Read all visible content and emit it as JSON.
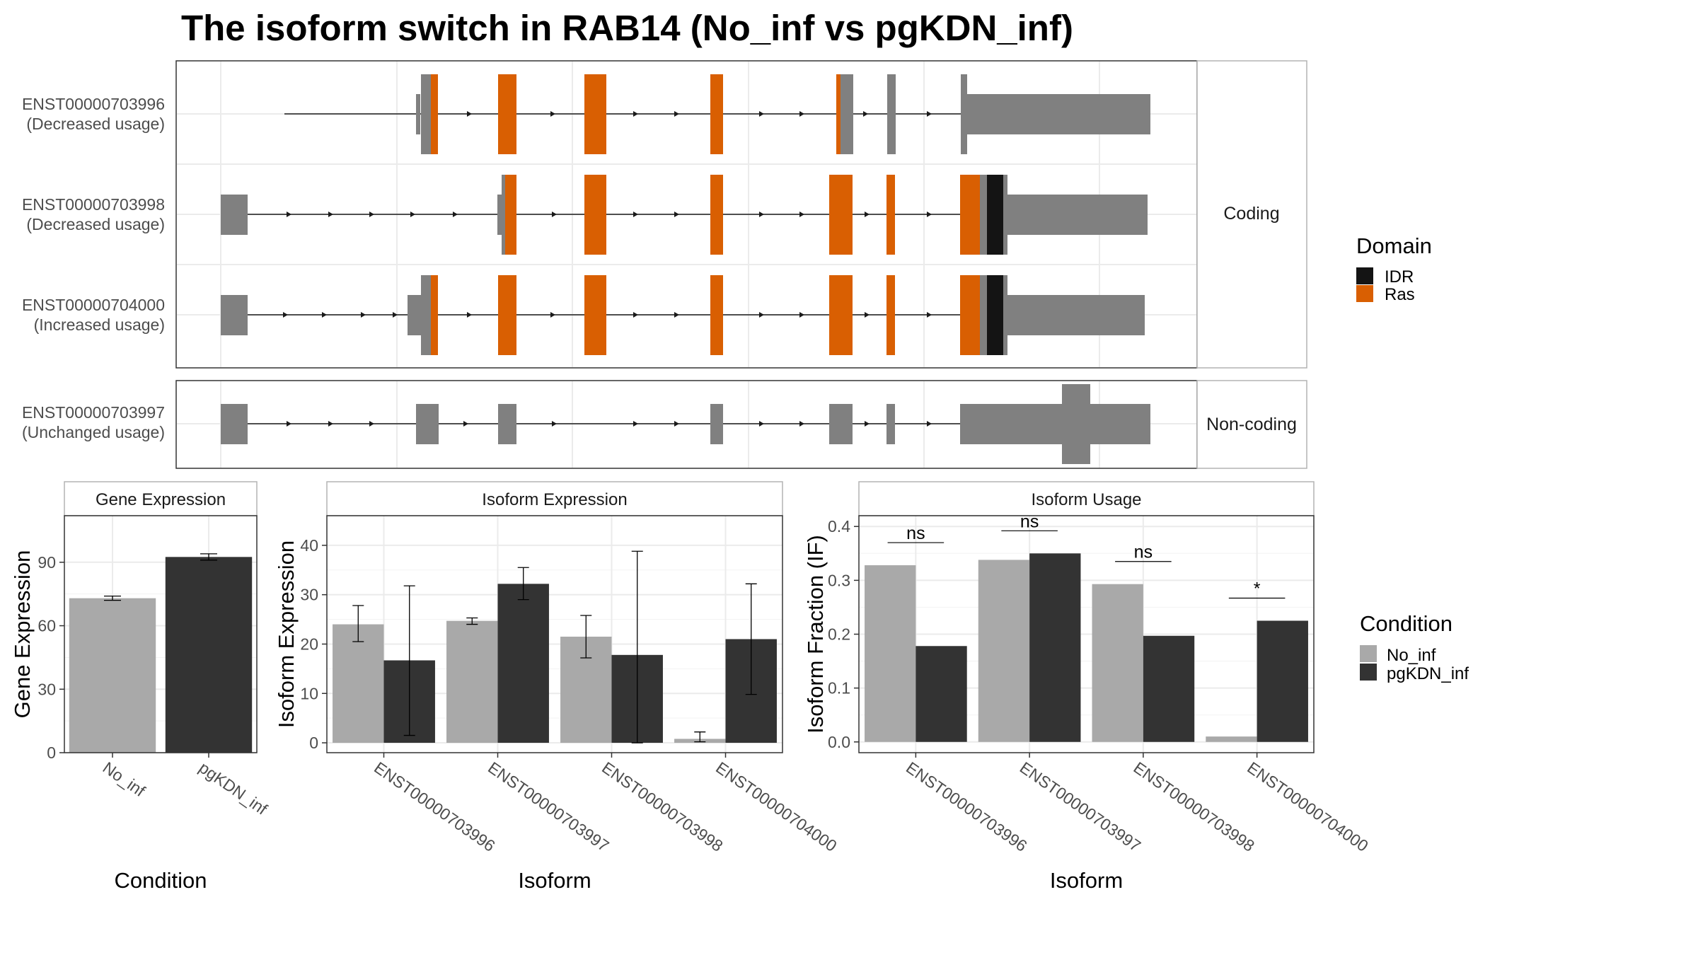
{
  "title": "The isoform switch in RAB14 (No_inf vs pgKDN_inf)",
  "colors": {
    "exon": "#808080",
    "ras": "#D95F02",
    "idr": "#141414",
    "no_inf": "#A9A9A9",
    "pgkdn_inf": "#333333",
    "grid": "#EBEBEB",
    "panel_border": "#333333",
    "strip_border": "#B3B3B3"
  },
  "structure": {
    "facets": [
      {
        "label": "Coding",
        "isoforms": [
          {
            "id": "ENST00000703996",
            "usage": "(Decreased usage)"
          },
          {
            "id": "ENST00000703998",
            "usage": "(Decreased usage)"
          },
          {
            "id": "ENST00000704000",
            "usage": "(Increased usage)"
          }
        ]
      },
      {
        "label": "Non-coding",
        "isoforms": [
          {
            "id": "ENST00000703997",
            "usage": "(Unchanged usage)"
          }
        ]
      }
    ],
    "legend": {
      "title": "Domain",
      "items": [
        {
          "label": "IDR",
          "color": "#141414"
        },
        {
          "label": "Ras",
          "color": "#D95F02"
        }
      ]
    }
  },
  "chart_data": [
    {
      "type": "bar",
      "title": "Gene Expression",
      "xlabel": "Condition",
      "ylabel": "Gene Expression",
      "ylim": [
        0,
        112
      ],
      "yticks": [
        0,
        30,
        60,
        90
      ],
      "categories": [
        "No_inf",
        "pgKDN_inf"
      ],
      "values": [
        73,
        92.5
      ],
      "errors": [
        [
          72,
          74
        ],
        [
          91,
          94
        ]
      ]
    },
    {
      "type": "bar",
      "title": "Isoform Expression",
      "xlabel": "Isoform",
      "ylabel": "Isoform Expression",
      "ylim": [
        -2,
        46
      ],
      "yticks": [
        0,
        10,
        20,
        30,
        40
      ],
      "categories": [
        "ENST00000703996",
        "ENST00000703997",
        "ENST00000703998",
        "ENST00000704000"
      ],
      "series": [
        {
          "name": "No_inf",
          "values": [
            24,
            24.7,
            21.5,
            0.8
          ],
          "errors": [
            [
              20.5,
              27.8
            ],
            [
              24,
              25.3
            ],
            [
              17.2,
              25.8
            ],
            [
              0.2,
              2.2
            ]
          ]
        },
        {
          "name": "pgKDN_inf",
          "values": [
            16.7,
            32.2,
            17.8,
            21
          ],
          "errors": [
            [
              1.5,
              31.8
            ],
            [
              29,
              35.5
            ],
            [
              0,
              38.8
            ],
            [
              9.8,
              32.2
            ]
          ]
        }
      ]
    },
    {
      "type": "bar",
      "title": "Isoform Usage",
      "xlabel": "Isoform",
      "ylabel": "Isoform Fraction (IF)",
      "ylim": [
        -0.02,
        0.42
      ],
      "yticks": [
        0.0,
        0.1,
        0.2,
        0.3,
        0.4
      ],
      "categories": [
        "ENST00000703996",
        "ENST00000703997",
        "ENST00000703998",
        "ENST00000704000"
      ],
      "series": [
        {
          "name": "No_inf",
          "values": [
            0.328,
            0.338,
            0.293,
            0.01
          ]
        },
        {
          "name": "pgKDN_inf",
          "values": [
            0.178,
            0.35,
            0.197,
            0.225
          ]
        }
      ],
      "annotations": [
        "ns",
        "ns",
        "ns",
        "*"
      ]
    }
  ],
  "condition_legend": {
    "title": "Condition",
    "items": [
      {
        "label": "No_inf",
        "color": "#A9A9A9"
      },
      {
        "label": "pgKDN_inf",
        "color": "#333333"
      }
    ]
  }
}
